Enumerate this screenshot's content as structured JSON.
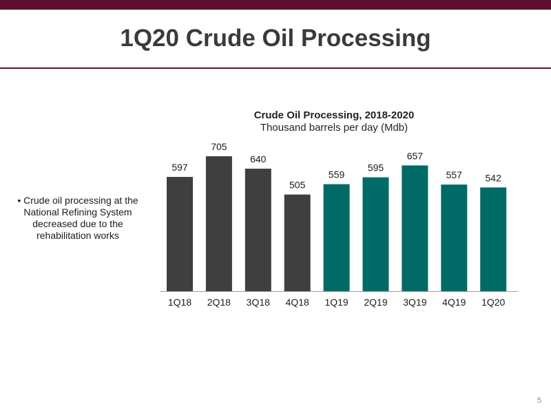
{
  "page": {
    "title": "1Q20 Crude Oil Processing",
    "bullet": "• Crude oil processing at the National Refining System decreased due to the rehabilitation works",
    "page_number": "5"
  },
  "colors": {
    "top_bar": "#5e1030",
    "bar_2018": "#3f3f3f",
    "bar_2019_2020": "#006b66"
  },
  "chart_data": {
    "type": "bar",
    "title": "Crude Oil Processing, 2018-2020",
    "subtitle": "Thousand barrels per day (Mdb)",
    "categories": [
      "1Q18",
      "2Q18",
      "3Q18",
      "4Q18",
      "1Q19",
      "2Q19",
      "3Q19",
      "4Q19",
      "1Q20"
    ],
    "values": [
      597,
      705,
      640,
      505,
      559,
      595,
      657,
      557,
      542
    ],
    "bar_colors": [
      "#3f3f3f",
      "#3f3f3f",
      "#3f3f3f",
      "#3f3f3f",
      "#006b66",
      "#006b66",
      "#006b66",
      "#006b66",
      "#006b66"
    ],
    "ylim": [
      0,
      705
    ],
    "grid": false,
    "legend": "none",
    "data_labels": true
  }
}
